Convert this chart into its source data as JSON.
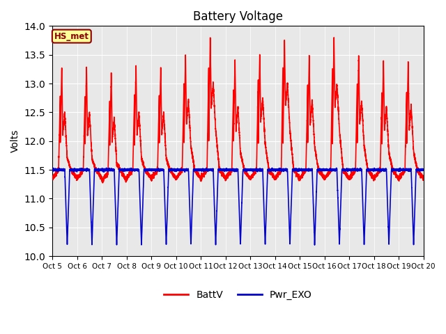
{
  "title": "Battery Voltage",
  "ylabel": "Volts",
  "ylim": [
    10.0,
    14.0
  ],
  "yticks": [
    10.0,
    10.5,
    11.0,
    11.5,
    12.0,
    12.5,
    13.0,
    13.5,
    14.0
  ],
  "xlabel_ticks": [
    "Oct 5",
    "Oct 6",
    "Oct 7",
    "Oct 8",
    "Oct 9",
    "Oct 10",
    "Oct 11",
    "Oct 12",
    "Oct 13",
    "Oct 14",
    "Oct 15",
    "Oct 16",
    "Oct 17",
    "Oct 18",
    "Oct 19",
    "Oct 20"
  ],
  "battv_color": "#ff0000",
  "pwr_exo_color": "#0000cc",
  "bg_color": "#e8e8e8",
  "legend_battv": "BattV",
  "legend_pwr": "Pwr_EXO",
  "hs_met_label": "HS_met",
  "hs_met_bg": "#ffff99",
  "hs_met_border": "#8b0000",
  "line_width": 1.2,
  "figsize": [
    6.4,
    4.8
  ],
  "dpi": 100
}
